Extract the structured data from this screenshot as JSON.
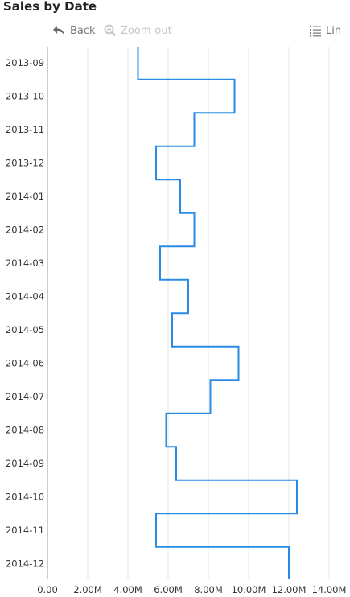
{
  "title": "Sales by Date",
  "toolbar": {
    "back_label": "Back",
    "zoom_out_label": "Zoom-out",
    "scale_label": "Lin"
  },
  "colors": {
    "line": "#2a8be6",
    "grid": "#e6e6e6",
    "axis": "#999999",
    "text": "#333333",
    "disabled": "#c4c4c4"
  },
  "chart_data": {
    "type": "line",
    "orientation": "horizontal",
    "step": true,
    "title": "Sales by Date",
    "categories": [
      "2013-09",
      "2013-10",
      "2013-11",
      "2013-12",
      "2014-01",
      "2014-02",
      "2014-03",
      "2014-04",
      "2014-05",
      "2014-06",
      "2014-07",
      "2014-08",
      "2014-09",
      "2014-10",
      "2014-11",
      "2014-12"
    ],
    "series": [
      {
        "values": [
          4500000,
          9300000,
          7300000,
          5400000,
          6600000,
          7300000,
          5600000,
          7000000,
          6200000,
          9500000,
          8100000,
          5900000,
          6400000,
          12400000,
          5400000,
          12000000
        ]
      }
    ],
    "x_ticks": [
      "0.00",
      "2.00M",
      "4.00M",
      "6.00M",
      "8.00M",
      "10.00M",
      "12.00M",
      "14.00M"
    ],
    "xlim": [
      0,
      14000000
    ],
    "grid": true
  }
}
